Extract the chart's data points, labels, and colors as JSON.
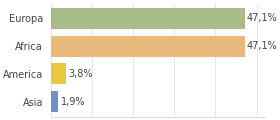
{
  "categories": [
    "Europa",
    "Africa",
    "America",
    "Asia"
  ],
  "values": [
    47.1,
    47.1,
    3.8,
    1.9
  ],
  "labels": [
    "47,1%",
    "47,1%",
    "3,8%",
    "1,9%"
  ],
  "bar_colors": [
    "#a8bc8a",
    "#e8b97a",
    "#e8c840",
    "#7090c8"
  ],
  "background_color": "#ffffff",
  "xlim": [
    0,
    52
  ],
  "bar_height": 0.75,
  "label_fontsize": 7,
  "tick_fontsize": 7
}
